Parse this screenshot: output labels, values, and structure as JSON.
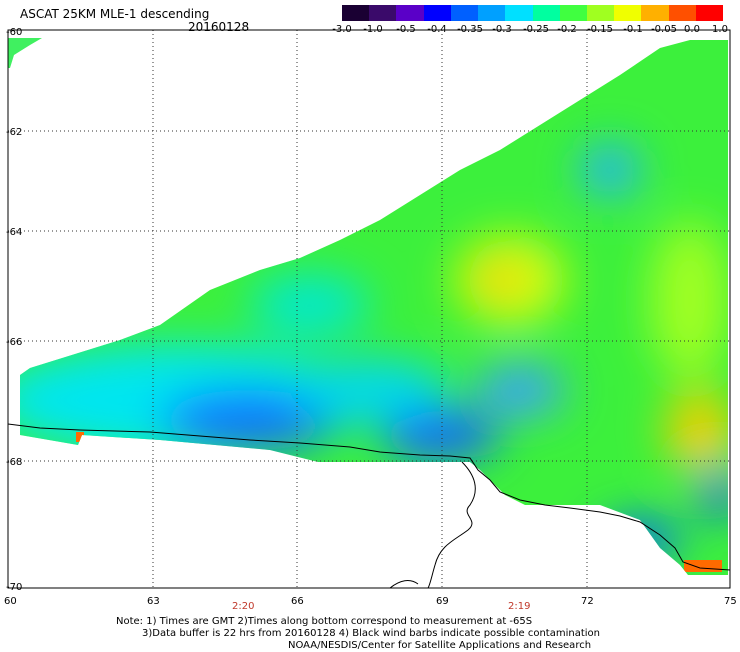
{
  "header": {
    "title": "ASCAT 25KM MLE-1 descending",
    "date": "20160128"
  },
  "colorbar": {
    "labels": [
      "-3.0",
      "-1.0",
      "-0.5",
      "-0.4",
      "-0.35",
      "-0.3",
      "-0.25",
      "-0.2",
      "-0.15",
      "-0.1",
      "-0.05",
      "0.0",
      "1.0"
    ],
    "colors": [
      "#1a0033",
      "#3a0a6a",
      "#5a00c8",
      "#0000ff",
      "#0060ff",
      "#00a0ff",
      "#00e0ff",
      "#00ffa0",
      "#40ff40",
      "#a0ff20",
      "#f0ff00",
      "#ffb000",
      "#ff5000",
      "#ff0000"
    ]
  },
  "map": {
    "lat_labels": [
      "-60",
      "-62",
      "-64",
      "-66",
      "-68",
      "-70"
    ],
    "lon_labels": [
      "60",
      "63",
      "66",
      "69",
      "72",
      "75"
    ],
    "time_labels": [
      "2:20",
      "2:19"
    ]
  },
  "notes": {
    "line1": "Note: 1) Times are GMT 2)Times along bottom correspond to measurement at -65S",
    "line2": "3)Data buffer is 22 hrs from 20160128 4) Black wind barbs indicate possible contamination",
    "line3": "NOAA/NESDIS/Center for Satellite Applications and Research"
  }
}
